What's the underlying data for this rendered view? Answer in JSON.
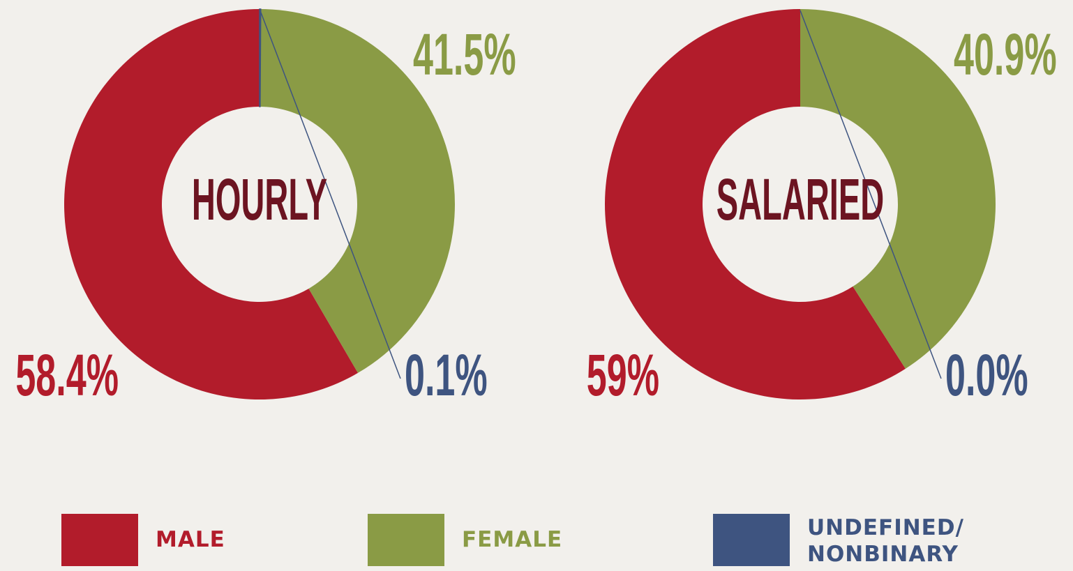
{
  "chart_data": [
    {
      "type": "pie",
      "title": "HOURLY",
      "categories": [
        "MALE",
        "FEMALE",
        "UNDEFINED/ NONBINARY"
      ],
      "values": [
        58.4,
        41.5,
        0.1
      ],
      "value_labels": [
        "58.4%",
        "41.5%",
        "0.1%"
      ],
      "colors": [
        "#b21c2b",
        "#8a9b45",
        "#3e5480"
      ]
    },
    {
      "type": "pie",
      "title": "SALARIED",
      "categories": [
        "MALE",
        "FEMALE",
        "UNDEFINED/ NONBINARY"
      ],
      "values": [
        59,
        40.9,
        0.0
      ],
      "value_labels": [
        "59%",
        "40.9%",
        "0.0%"
      ],
      "colors": [
        "#b21c2b",
        "#8a9b45",
        "#3e5480"
      ]
    }
  ]
}
